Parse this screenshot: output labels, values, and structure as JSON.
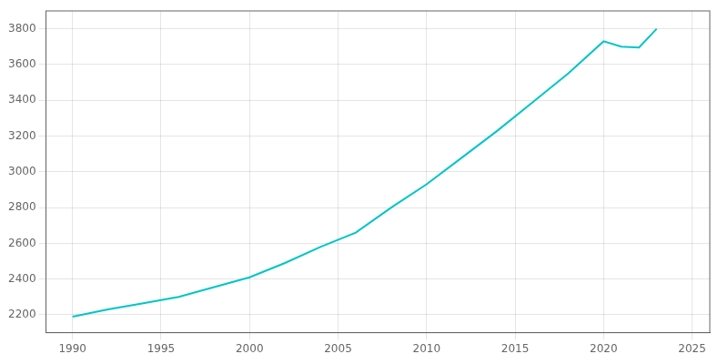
{
  "chart_data": {
    "type": "line",
    "x": [
      1990,
      1992,
      1994,
      1996,
      1998,
      2000,
      2002,
      2004,
      2006,
      2008,
      2010,
      2012,
      2014,
      2016,
      2018,
      2020,
      2021,
      2022,
      2023
    ],
    "values": [
      2190,
      2230,
      2265,
      2300,
      2355,
      2410,
      2490,
      2580,
      2660,
      2800,
      2930,
      3080,
      3230,
      3390,
      3550,
      3730,
      3700,
      3695,
      3800
    ],
    "color": "#00C5C8",
    "xlim": [
      1988.5,
      2026
    ],
    "ylim": [
      2100,
      3900
    ],
    "xticks": [
      1990,
      1995,
      2000,
      2005,
      2010,
      2015,
      2020,
      2025
    ],
    "yticks": [
      2200,
      2400,
      2600,
      2800,
      3000,
      3200,
      3400,
      3600,
      3800
    ],
    "grid": true
  }
}
